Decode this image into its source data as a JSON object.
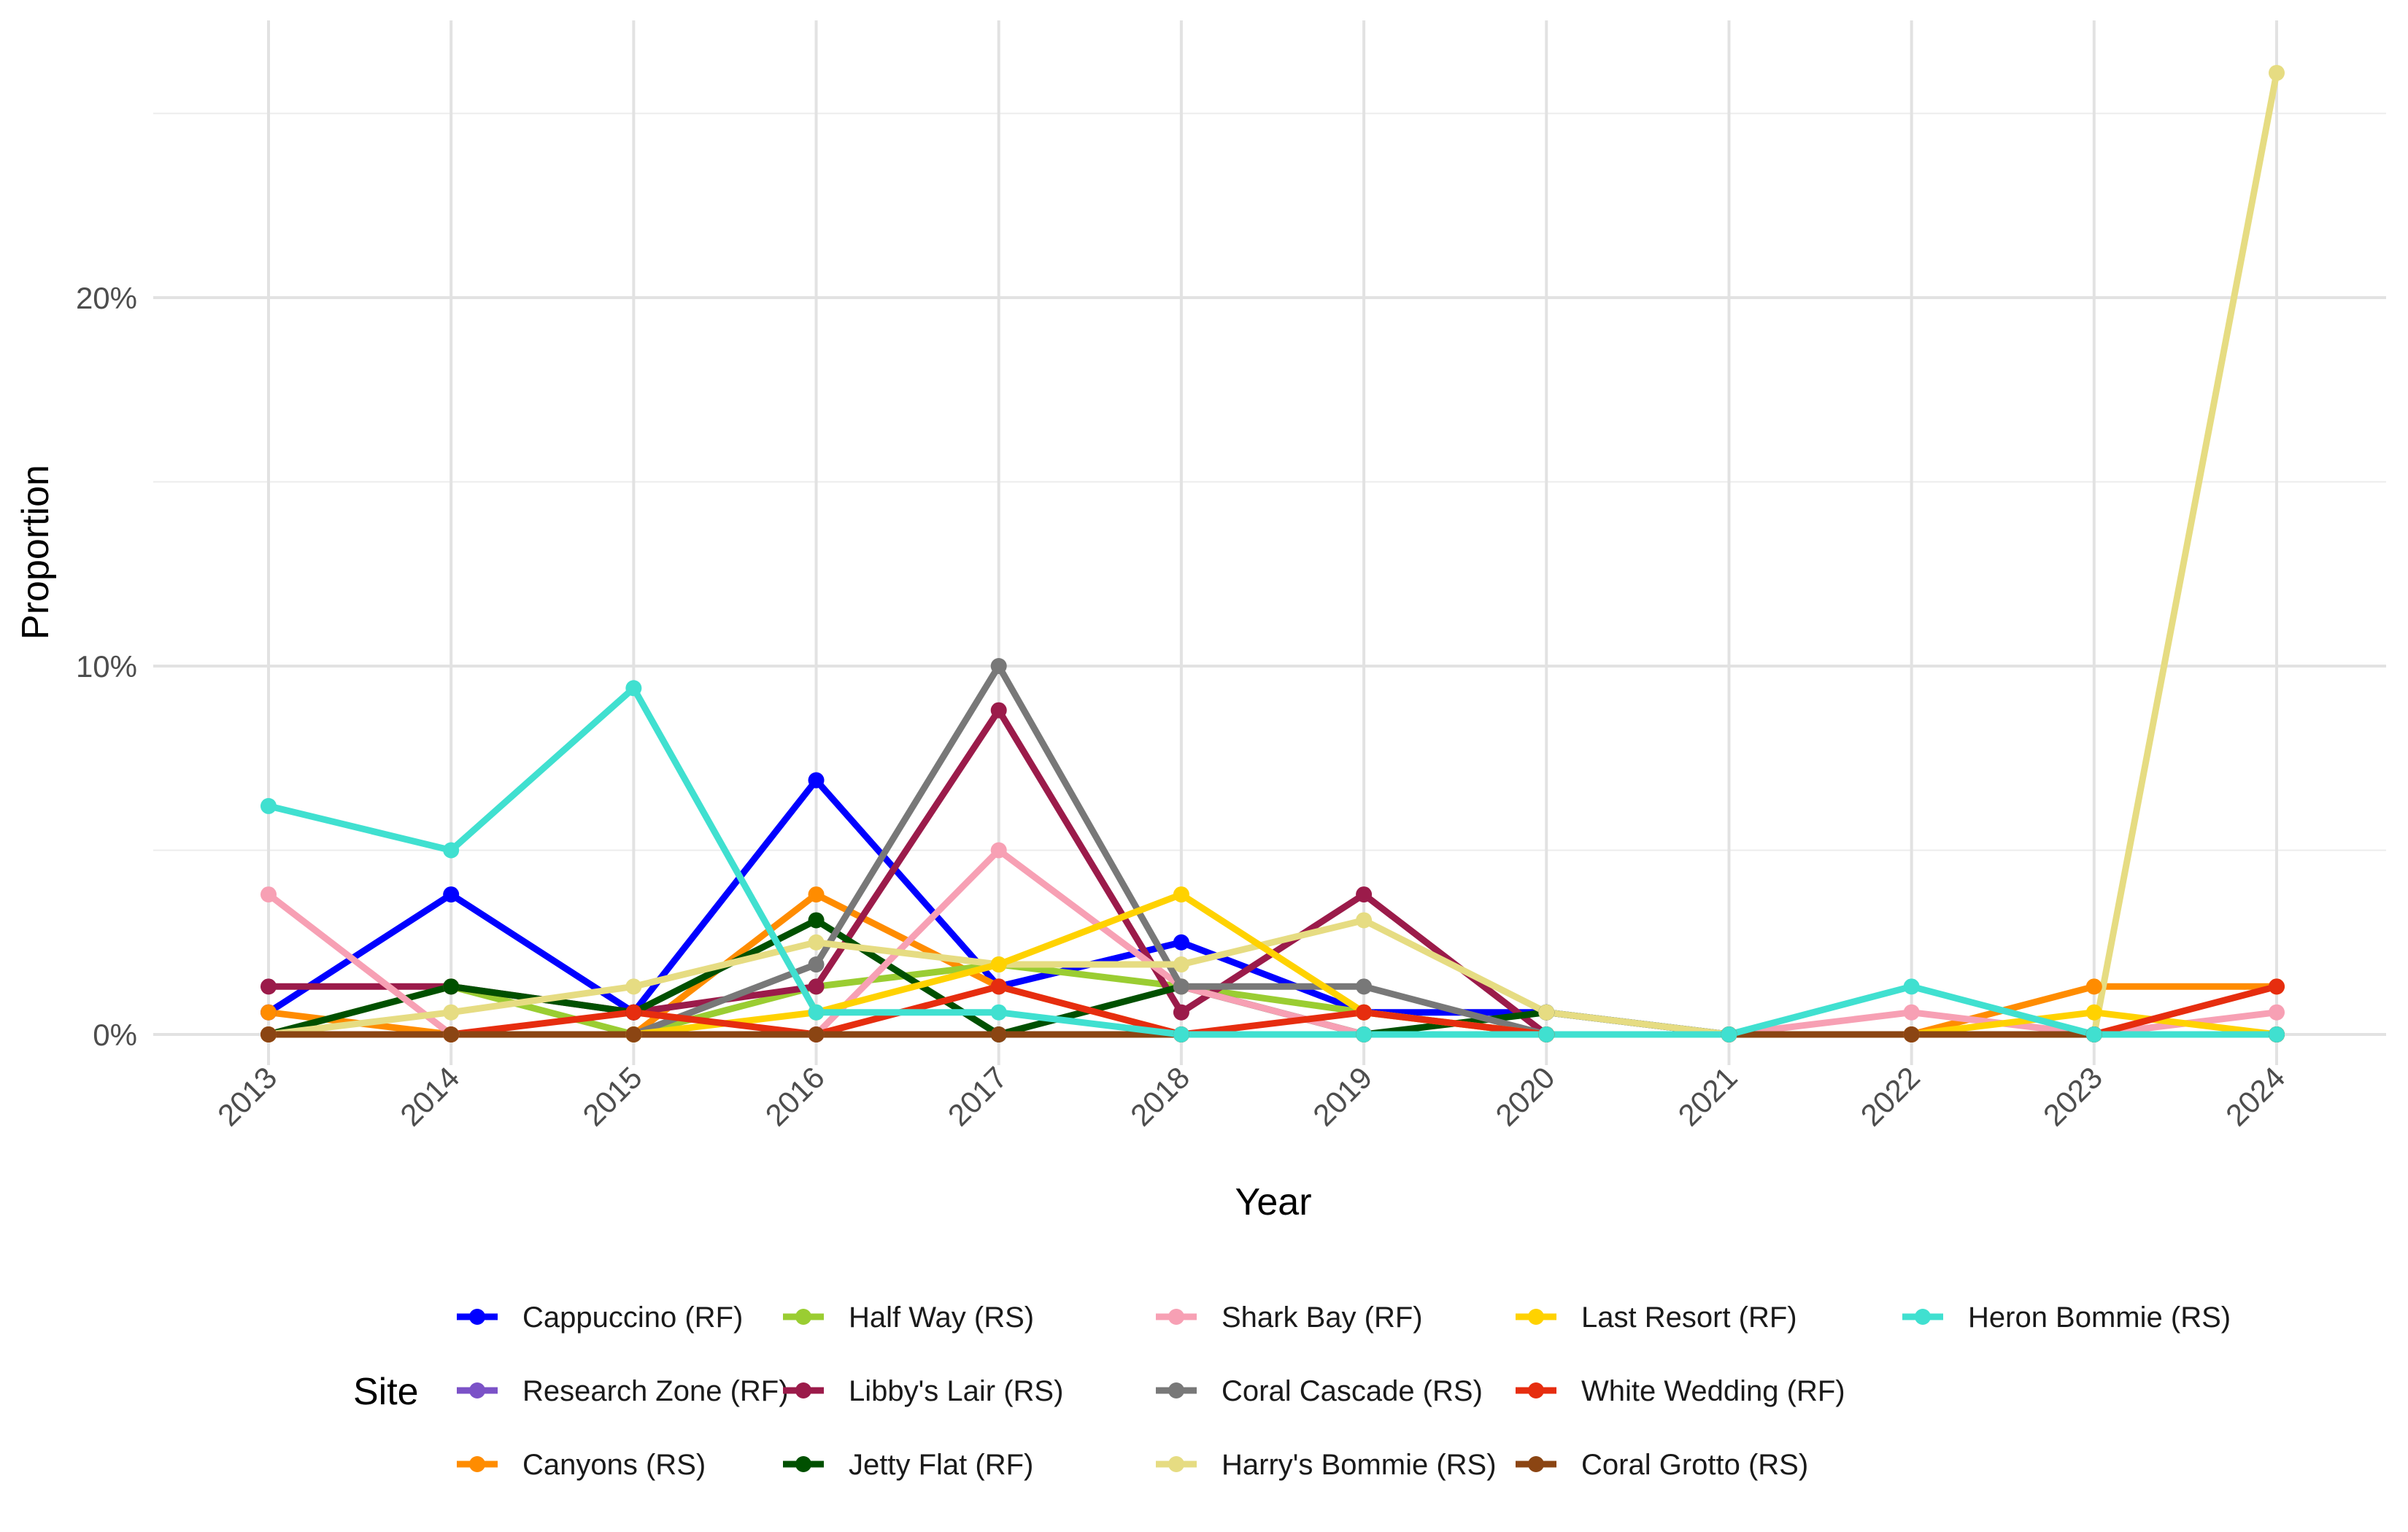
{
  "chart_data": {
    "type": "line",
    "title": "",
    "xlabel": "Year",
    "ylabel": "Proportion",
    "x": [
      2013,
      2014,
      2015,
      2016,
      2017,
      2018,
      2019,
      2020,
      2021,
      2022,
      2023,
      2024
    ],
    "ylim": [
      -0.8,
      26.5
    ],
    "yticks": [
      0,
      10,
      20
    ],
    "ytick_labels": [
      "0%",
      "10%",
      "20%"
    ],
    "grid": true,
    "legend": {
      "title": "Site",
      "position": "bottom"
    },
    "series": [
      {
        "name": "Cappuccino (RF)",
        "color": "#0000ff",
        "values": [
          0.6,
          3.8,
          0.6,
          6.9,
          1.3,
          2.5,
          0.6,
          0.6,
          0,
          0,
          0,
          0
        ]
      },
      {
        "name": "Research Zone (RF)",
        "color": "#7b52c7",
        "values": [
          0,
          0,
          0,
          0,
          0,
          0,
          0,
          0,
          0,
          0,
          0,
          0
        ]
      },
      {
        "name": "Canyons (RS)",
        "color": "#ff8c00",
        "values": [
          0.6,
          0,
          0,
          3.8,
          1.3,
          0,
          0,
          0,
          0,
          0,
          1.3,
          1.3
        ]
      },
      {
        "name": "Half Way (RS)",
        "color": "#9acd32",
        "values": [
          0,
          1.3,
          0,
          1.3,
          1.9,
          1.3,
          0.6,
          0,
          0,
          0,
          0,
          0
        ]
      },
      {
        "name": "Libby's Lair (RS)",
        "color": "#9b1b4a",
        "values": [
          1.3,
          1.3,
          0.6,
          1.3,
          8.8,
          0.6,
          3.8,
          0,
          0,
          0,
          0,
          0
        ]
      },
      {
        "name": "Jetty Flat (RF)",
        "color": "#005000",
        "values": [
          0,
          1.3,
          0.6,
          3.1,
          0,
          1.3,
          0,
          0.6,
          0,
          0,
          0,
          0
        ]
      },
      {
        "name": "Shark Bay (RF)",
        "color": "#f7a0b4",
        "values": [
          3.8,
          0,
          0,
          0,
          5.0,
          1.3,
          0,
          0,
          0,
          0.6,
          0,
          0.6
        ]
      },
      {
        "name": "Coral Cascade (RS)",
        "color": "#787878",
        "values": [
          0,
          0,
          0,
          1.9,
          10.0,
          1.3,
          1.3,
          0,
          0,
          0,
          0,
          0
        ]
      },
      {
        "name": "Harry's Bommie (RS)",
        "color": "#e6dc82",
        "values": [
          0,
          0.6,
          1.3,
          2.5,
          1.9,
          1.9,
          3.1,
          0.6,
          0,
          0,
          0,
          26.1
        ]
      },
      {
        "name": "Last Resort (RF)",
        "color": "#ffd200",
        "values": [
          0,
          0,
          0,
          0.6,
          1.9,
          3.8,
          0.6,
          0,
          0,
          0,
          0.6,
          0
        ]
      },
      {
        "name": "White Wedding (RF)",
        "color": "#e62d0f",
        "values": [
          0,
          0,
          0.6,
          0,
          1.3,
          0,
          0.6,
          0,
          0,
          0,
          0,
          1.3
        ]
      },
      {
        "name": "Coral Grotto (RS)",
        "color": "#8b4513",
        "values": [
          0,
          0,
          0,
          0,
          0,
          0,
          0,
          0,
          0,
          0,
          0,
          0
        ]
      },
      {
        "name": "Heron Bommie (RS)",
        "color": "#40e0d0",
        "values": [
          6.2,
          5.0,
          9.4,
          0.6,
          0.6,
          0,
          0,
          0,
          0,
          1.3,
          0,
          0
        ]
      }
    ]
  }
}
